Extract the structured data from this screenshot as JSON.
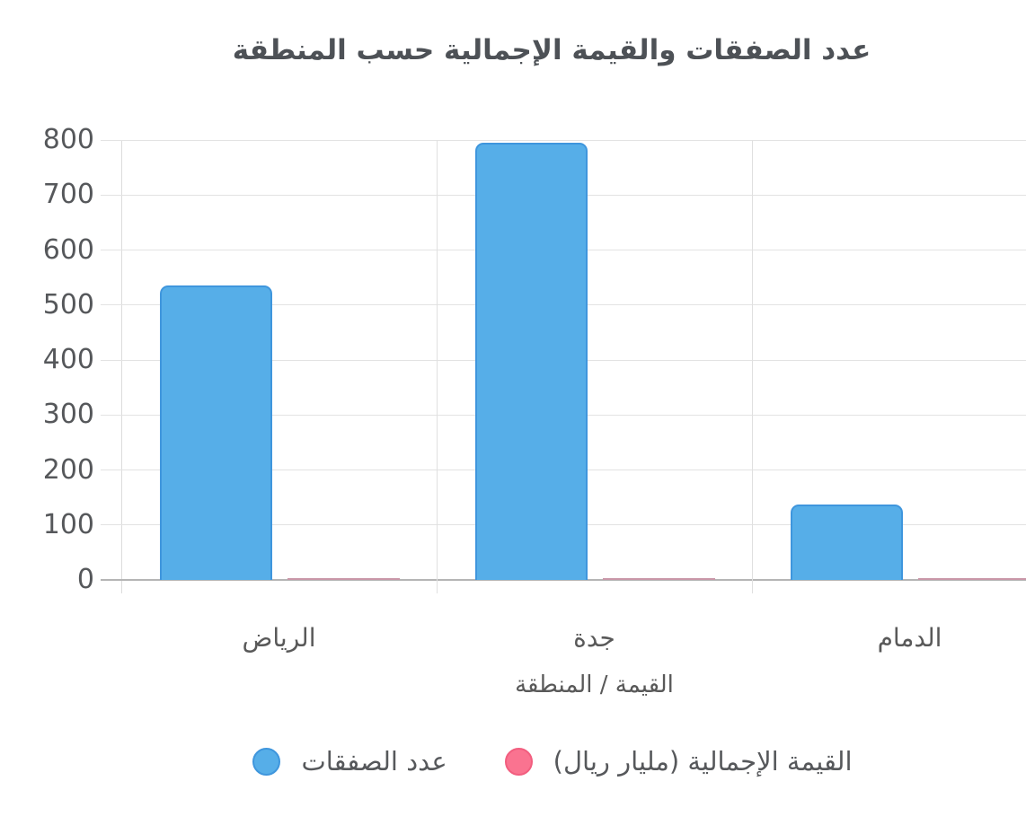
{
  "chart_data": {
    "type": "bar",
    "title": "عدد الصفقات والقيمة الإجمالية حسب المنطقة",
    "xlabel": "القيمة / المنطقة",
    "ylabel": "",
    "categories": [
      "الرياض",
      "جدة",
      "الدمام"
    ],
    "series": [
      {
        "name": "عدد الصفقات",
        "values": [
          535,
          795,
          137
        ],
        "color": "#56AEE8",
        "border_color": "#3F96DD"
      },
      {
        "name": "القيمة الإجمالية (مليار ريال)",
        "values": [
          2,
          2,
          2
        ],
        "color": "#FA7390",
        "border_color": "#F25E7F",
        "bar_line_color": "#C997A8"
      }
    ],
    "ylim": [
      0,
      800
    ],
    "ytick_step": 100,
    "yticks": [
      "0",
      "100",
      "200",
      "300",
      "400",
      "500",
      "600",
      "700",
      "800"
    ],
    "grid": true,
    "legend_position": "bottom",
    "colors": {
      "grid": "#E3E3E3",
      "baseline": "#B5B5B5",
      "axis_text": "#56585B",
      "title_text": "#4D5156",
      "background": "#FFFFFF"
    }
  }
}
